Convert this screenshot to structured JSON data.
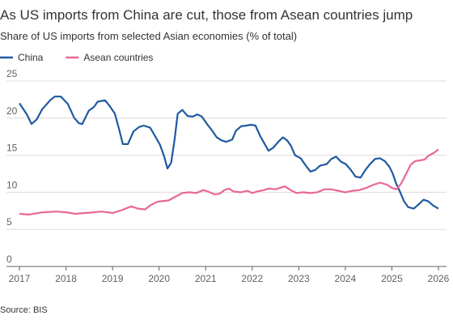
{
  "chart_data": {
    "type": "line",
    "title": "As US imports from China are cut, those from Asean countries jump",
    "subtitle": "Share of US imports from selected Asian economies (% of total)",
    "source": "Source: BIS",
    "xlim": [
      2017,
      2026
    ],
    "xticks": [
      2017,
      2018,
      2019,
      2020,
      2021,
      2022,
      2023,
      2024,
      2025,
      2026
    ],
    "ylim": [
      0,
      25
    ],
    "yticks": [
      0,
      5,
      10,
      15,
      20,
      25
    ],
    "grid": true,
    "legend": "top-left",
    "series": [
      {
        "name": "China",
        "color": "#1f5aa0",
        "x": [
          2017.0,
          2017.16,
          2017.26,
          2017.37,
          2017.49,
          2017.66,
          2017.76,
          2017.89,
          2018.04,
          2018.18,
          2018.28,
          2018.35,
          2018.49,
          2018.6,
          2018.68,
          2018.84,
          2018.94,
          2019.05,
          2019.15,
          2019.22,
          2019.33,
          2019.45,
          2019.57,
          2019.67,
          2019.81,
          2019.92,
          2020.02,
          2020.11,
          2020.18,
          2020.26,
          2020.33,
          2020.4,
          2020.5,
          2020.61,
          2020.72,
          2020.82,
          2020.92,
          2021.03,
          2021.13,
          2021.24,
          2021.34,
          2021.44,
          2021.57,
          2021.65,
          2021.76,
          2021.88,
          2021.97,
          2022.07,
          2022.17,
          2022.26,
          2022.35,
          2022.45,
          2022.56,
          2022.66,
          2022.75,
          2022.83,
          2022.92,
          2023.04,
          2023.15,
          2023.25,
          2023.35,
          2023.46,
          2023.6,
          2023.7,
          2023.8,
          2023.91,
          2024.01,
          2024.12,
          2024.22,
          2024.33,
          2024.43,
          2024.53,
          2024.64,
          2024.74,
          2024.85,
          2024.95,
          2025.02,
          2025.09,
          2025.18,
          2025.26,
          2025.35,
          2025.47,
          2025.58,
          2025.68,
          2025.78,
          2025.89,
          2026.0
        ],
        "values": [
          22.0,
          20.5,
          19.2,
          19.8,
          21.2,
          22.4,
          22.9,
          22.9,
          21.9,
          20.0,
          19.3,
          19.2,
          21.0,
          21.5,
          22.2,
          22.4,
          21.6,
          20.6,
          18.3,
          16.5,
          16.5,
          18.2,
          18.8,
          19.0,
          18.7,
          17.5,
          16.4,
          14.8,
          13.2,
          14.0,
          17.0,
          20.6,
          21.1,
          20.3,
          20.2,
          20.5,
          20.2,
          19.2,
          18.4,
          17.4,
          17.0,
          16.8,
          17.1,
          18.3,
          18.9,
          19.0,
          19.1,
          19.0,
          17.6,
          16.6,
          15.6,
          16.0,
          16.8,
          17.4,
          17.0,
          16.3,
          15.0,
          14.6,
          13.6,
          12.8,
          13.0,
          13.6,
          13.8,
          14.5,
          14.8,
          14.1,
          13.8,
          13.0,
          12.1,
          12.0,
          13.0,
          13.8,
          14.5,
          14.6,
          14.2,
          13.4,
          12.5,
          11.2,
          10.0,
          8.8,
          8.0,
          7.8,
          8.4,
          9.0,
          8.8,
          8.2,
          7.8
        ]
      },
      {
        "name": "Asean countries",
        "color": "#e8679a",
        "x": [
          2017.0,
          2017.2,
          2017.5,
          2017.8,
          2018.0,
          2018.2,
          2018.4,
          2018.6,
          2018.75,
          2018.9,
          2019.0,
          2019.2,
          2019.4,
          2019.55,
          2019.7,
          2019.8,
          2019.95,
          2020.05,
          2020.2,
          2020.35,
          2020.5,
          2020.65,
          2020.8,
          2020.95,
          2021.05,
          2021.2,
          2021.3,
          2021.4,
          2021.5,
          2021.6,
          2021.75,
          2021.9,
          2022.0,
          2022.1,
          2022.25,
          2022.35,
          2022.5,
          2022.6,
          2022.7,
          2022.85,
          2022.95,
          2023.1,
          2023.25,
          2023.4,
          2023.55,
          2023.7,
          2023.85,
          2024.0,
          2024.15,
          2024.3,
          2024.45,
          2024.6,
          2024.75,
          2024.9,
          2025.0,
          2025.1,
          2025.2,
          2025.3,
          2025.4,
          2025.5,
          2025.6,
          2025.7,
          2025.8,
          2025.9,
          2026.0
        ],
        "values": [
          7.1,
          7.0,
          7.3,
          7.4,
          7.3,
          7.1,
          7.2,
          7.3,
          7.4,
          7.3,
          7.2,
          7.6,
          8.1,
          7.8,
          7.7,
          8.2,
          8.7,
          8.8,
          8.9,
          9.4,
          9.9,
          10.0,
          9.9,
          10.3,
          10.1,
          9.7,
          9.8,
          10.3,
          10.5,
          10.1,
          10.0,
          10.2,
          9.9,
          10.1,
          10.3,
          10.5,
          10.4,
          10.6,
          10.8,
          10.2,
          9.9,
          10.0,
          9.9,
          10.0,
          10.4,
          10.4,
          10.2,
          10.0,
          10.2,
          10.3,
          10.6,
          11.0,
          11.3,
          11.0,
          10.6,
          10.4,
          11.2,
          12.4,
          13.7,
          14.2,
          14.3,
          14.4,
          15.0,
          15.3,
          15.8
        ]
      }
    ]
  }
}
